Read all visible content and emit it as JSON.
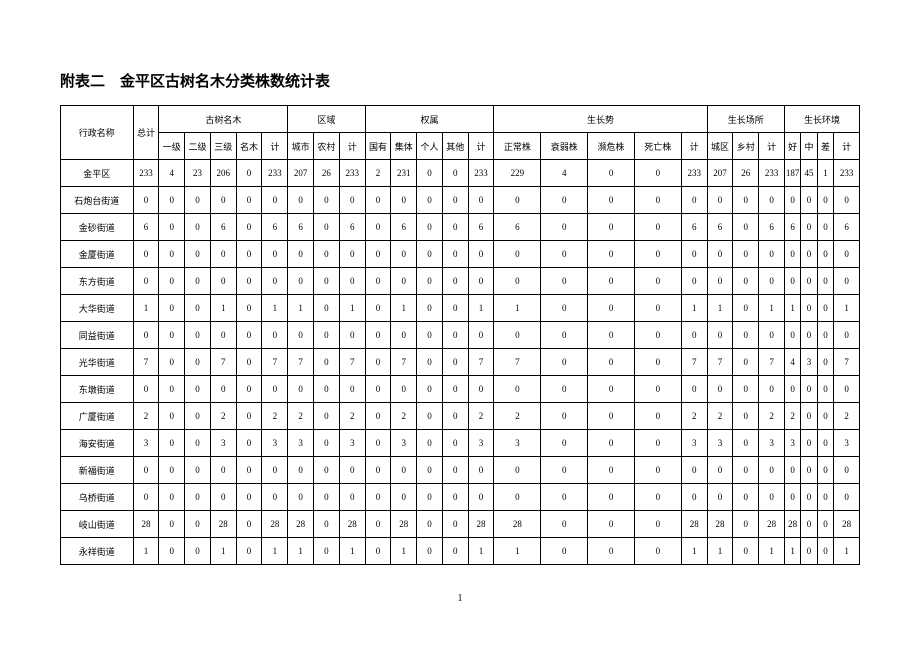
{
  "title": "附表二　金平区古树名木分类株数统计表",
  "columns": {
    "name": "行政名称",
    "total": "总计",
    "group_tree": "古树名木",
    "tree_l1": "一级",
    "tree_l2": "二级",
    "tree_l3": "三级",
    "tree_fam": "名木",
    "tree_sum": "计",
    "group_area": "区域",
    "area_city": "城市",
    "area_rural": "农村",
    "area_sum": "计",
    "group_own": "权属",
    "own_state": "国有",
    "own_coll": "集体",
    "own_priv": "个人",
    "own_other": "其他",
    "own_sum": "计",
    "group_grow": "生长势",
    "grow_normal": "正常株",
    "grow_weak": "衰弱株",
    "grow_danger": "濒危株",
    "grow_dead": "死亡株",
    "grow_sum": "计",
    "group_place": "生长场所",
    "place_city": "城区",
    "place_rural": "乡村",
    "place_sum": "计",
    "group_env": "生长环境",
    "env_good": "好",
    "env_mid": "中",
    "env_bad": "差",
    "env_sum": "计"
  },
  "rows": [
    {
      "name": "金平区",
      "total": 233,
      "l1": 4,
      "l2": 23,
      "l3": 206,
      "fam": 0,
      "tsum": 233,
      "acity": 207,
      "arural": 26,
      "asum": 233,
      "ostate": 2,
      "ocoll": 231,
      "opriv": 0,
      "oother": 0,
      "osum": 233,
      "gnorm": 229,
      "gweak": 4,
      "gdang": 0,
      "gdead": 0,
      "gsum": 233,
      "pcity": 207,
      "prural": 26,
      "psum": 233,
      "egood": 187,
      "emid": 45,
      "ebad": 1,
      "esum": 233
    },
    {
      "name": "石炮台街道",
      "total": 0,
      "l1": 0,
      "l2": 0,
      "l3": 0,
      "fam": 0,
      "tsum": 0,
      "acity": 0,
      "arural": 0,
      "asum": 0,
      "ostate": 0,
      "ocoll": 0,
      "opriv": 0,
      "oother": 0,
      "osum": 0,
      "gnorm": 0,
      "gweak": 0,
      "gdang": 0,
      "gdead": 0,
      "gsum": 0,
      "pcity": 0,
      "prural": 0,
      "psum": 0,
      "egood": 0,
      "emid": 0,
      "ebad": 0,
      "esum": 0
    },
    {
      "name": "金砂街道",
      "total": 6,
      "l1": 0,
      "l2": 0,
      "l3": 6,
      "fam": 0,
      "tsum": 6,
      "acity": 6,
      "arural": 0,
      "asum": 6,
      "ostate": 0,
      "ocoll": 6,
      "opriv": 0,
      "oother": 0,
      "osum": 6,
      "gnorm": 6,
      "gweak": 0,
      "gdang": 0,
      "gdead": 0,
      "gsum": 6,
      "pcity": 6,
      "prural": 0,
      "psum": 6,
      "egood": 6,
      "emid": 0,
      "ebad": 0,
      "esum": 6
    },
    {
      "name": "金厦街道",
      "total": 0,
      "l1": 0,
      "l2": 0,
      "l3": 0,
      "fam": 0,
      "tsum": 0,
      "acity": 0,
      "arural": 0,
      "asum": 0,
      "ostate": 0,
      "ocoll": 0,
      "opriv": 0,
      "oother": 0,
      "osum": 0,
      "gnorm": 0,
      "gweak": 0,
      "gdang": 0,
      "gdead": 0,
      "gsum": 0,
      "pcity": 0,
      "prural": 0,
      "psum": 0,
      "egood": 0,
      "emid": 0,
      "ebad": 0,
      "esum": 0
    },
    {
      "name": "东方街道",
      "total": 0,
      "l1": 0,
      "l2": 0,
      "l3": 0,
      "fam": 0,
      "tsum": 0,
      "acity": 0,
      "arural": 0,
      "asum": 0,
      "ostate": 0,
      "ocoll": 0,
      "opriv": 0,
      "oother": 0,
      "osum": 0,
      "gnorm": 0,
      "gweak": 0,
      "gdang": 0,
      "gdead": 0,
      "gsum": 0,
      "pcity": 0,
      "prural": 0,
      "psum": 0,
      "egood": 0,
      "emid": 0,
      "ebad": 0,
      "esum": 0
    },
    {
      "name": "大华街道",
      "total": 1,
      "l1": 0,
      "l2": 0,
      "l3": 1,
      "fam": 0,
      "tsum": 1,
      "acity": 1,
      "arural": 0,
      "asum": 1,
      "ostate": 0,
      "ocoll": 1,
      "opriv": 0,
      "oother": 0,
      "osum": 1,
      "gnorm": 1,
      "gweak": 0,
      "gdang": 0,
      "gdead": 0,
      "gsum": 1,
      "pcity": 1,
      "prural": 0,
      "psum": 1,
      "egood": 1,
      "emid": 0,
      "ebad": 0,
      "esum": 1
    },
    {
      "name": "同益街道",
      "total": 0,
      "l1": 0,
      "l2": 0,
      "l3": 0,
      "fam": 0,
      "tsum": 0,
      "acity": 0,
      "arural": 0,
      "asum": 0,
      "ostate": 0,
      "ocoll": 0,
      "opriv": 0,
      "oother": 0,
      "osum": 0,
      "gnorm": 0,
      "gweak": 0,
      "gdang": 0,
      "gdead": 0,
      "gsum": 0,
      "pcity": 0,
      "prural": 0,
      "psum": 0,
      "egood": 0,
      "emid": 0,
      "ebad": 0,
      "esum": 0
    },
    {
      "name": "光华街道",
      "total": 7,
      "l1": 0,
      "l2": 0,
      "l3": 7,
      "fam": 0,
      "tsum": 7,
      "acity": 7,
      "arural": 0,
      "asum": 7,
      "ostate": 0,
      "ocoll": 7,
      "opriv": 0,
      "oother": 0,
      "osum": 7,
      "gnorm": 7,
      "gweak": 0,
      "gdang": 0,
      "gdead": 0,
      "gsum": 7,
      "pcity": 7,
      "prural": 0,
      "psum": 7,
      "egood": 4,
      "emid": 3,
      "ebad": 0,
      "esum": 7
    },
    {
      "name": "东墩街道",
      "total": 0,
      "l1": 0,
      "l2": 0,
      "l3": 0,
      "fam": 0,
      "tsum": 0,
      "acity": 0,
      "arural": 0,
      "asum": 0,
      "ostate": 0,
      "ocoll": 0,
      "opriv": 0,
      "oother": 0,
      "osum": 0,
      "gnorm": 0,
      "gweak": 0,
      "gdang": 0,
      "gdead": 0,
      "gsum": 0,
      "pcity": 0,
      "prural": 0,
      "psum": 0,
      "egood": 0,
      "emid": 0,
      "ebad": 0,
      "esum": 0
    },
    {
      "name": "广厦街道",
      "total": 2,
      "l1": 0,
      "l2": 0,
      "l3": 2,
      "fam": 0,
      "tsum": 2,
      "acity": 2,
      "arural": 0,
      "asum": 2,
      "ostate": 0,
      "ocoll": 2,
      "opriv": 0,
      "oother": 0,
      "osum": 2,
      "gnorm": 2,
      "gweak": 0,
      "gdang": 0,
      "gdead": 0,
      "gsum": 2,
      "pcity": 2,
      "prural": 0,
      "psum": 2,
      "egood": 2,
      "emid": 0,
      "ebad": 0,
      "esum": 2
    },
    {
      "name": "海安街道",
      "total": 3,
      "l1": 0,
      "l2": 0,
      "l3": 3,
      "fam": 0,
      "tsum": 3,
      "acity": 3,
      "arural": 0,
      "asum": 3,
      "ostate": 0,
      "ocoll": 3,
      "opriv": 0,
      "oother": 0,
      "osum": 3,
      "gnorm": 3,
      "gweak": 0,
      "gdang": 0,
      "gdead": 0,
      "gsum": 3,
      "pcity": 3,
      "prural": 0,
      "psum": 3,
      "egood": 3,
      "emid": 0,
      "ebad": 0,
      "esum": 3
    },
    {
      "name": "新福街道",
      "total": 0,
      "l1": 0,
      "l2": 0,
      "l3": 0,
      "fam": 0,
      "tsum": 0,
      "acity": 0,
      "arural": 0,
      "asum": 0,
      "ostate": 0,
      "ocoll": 0,
      "opriv": 0,
      "oother": 0,
      "osum": 0,
      "gnorm": 0,
      "gweak": 0,
      "gdang": 0,
      "gdead": 0,
      "gsum": 0,
      "pcity": 0,
      "prural": 0,
      "psum": 0,
      "egood": 0,
      "emid": 0,
      "ebad": 0,
      "esum": 0
    },
    {
      "name": "乌桥街道",
      "total": 0,
      "l1": 0,
      "l2": 0,
      "l3": 0,
      "fam": 0,
      "tsum": 0,
      "acity": 0,
      "arural": 0,
      "asum": 0,
      "ostate": 0,
      "ocoll": 0,
      "opriv": 0,
      "oother": 0,
      "osum": 0,
      "gnorm": 0,
      "gweak": 0,
      "gdang": 0,
      "gdead": 0,
      "gsum": 0,
      "pcity": 0,
      "prural": 0,
      "psum": 0,
      "egood": 0,
      "emid": 0,
      "ebad": 0,
      "esum": 0
    },
    {
      "name": "岐山街道",
      "total": 28,
      "l1": 0,
      "l2": 0,
      "l3": 28,
      "fam": 0,
      "tsum": 28,
      "acity": 28,
      "arural": 0,
      "asum": 28,
      "ostate": 0,
      "ocoll": 28,
      "opriv": 0,
      "oother": 0,
      "osum": 28,
      "gnorm": 28,
      "gweak": 0,
      "gdang": 0,
      "gdead": 0,
      "gsum": 28,
      "pcity": 28,
      "prural": 0,
      "psum": 28,
      "egood": 28,
      "emid": 0,
      "ebad": 0,
      "esum": 28
    },
    {
      "name": "永祥街道",
      "total": 1,
      "l1": 0,
      "l2": 0,
      "l3": 1,
      "fam": 0,
      "tsum": 1,
      "acity": 1,
      "arural": 0,
      "asum": 1,
      "ostate": 0,
      "ocoll": 1,
      "opriv": 0,
      "oother": 0,
      "osum": 1,
      "gnorm": 1,
      "gweak": 0,
      "gdang": 0,
      "gdead": 0,
      "gsum": 1,
      "pcity": 1,
      "prural": 0,
      "psum": 1,
      "egood": 1,
      "emid": 0,
      "ebad": 0,
      "esum": 1
    }
  ],
  "page_number": "1"
}
